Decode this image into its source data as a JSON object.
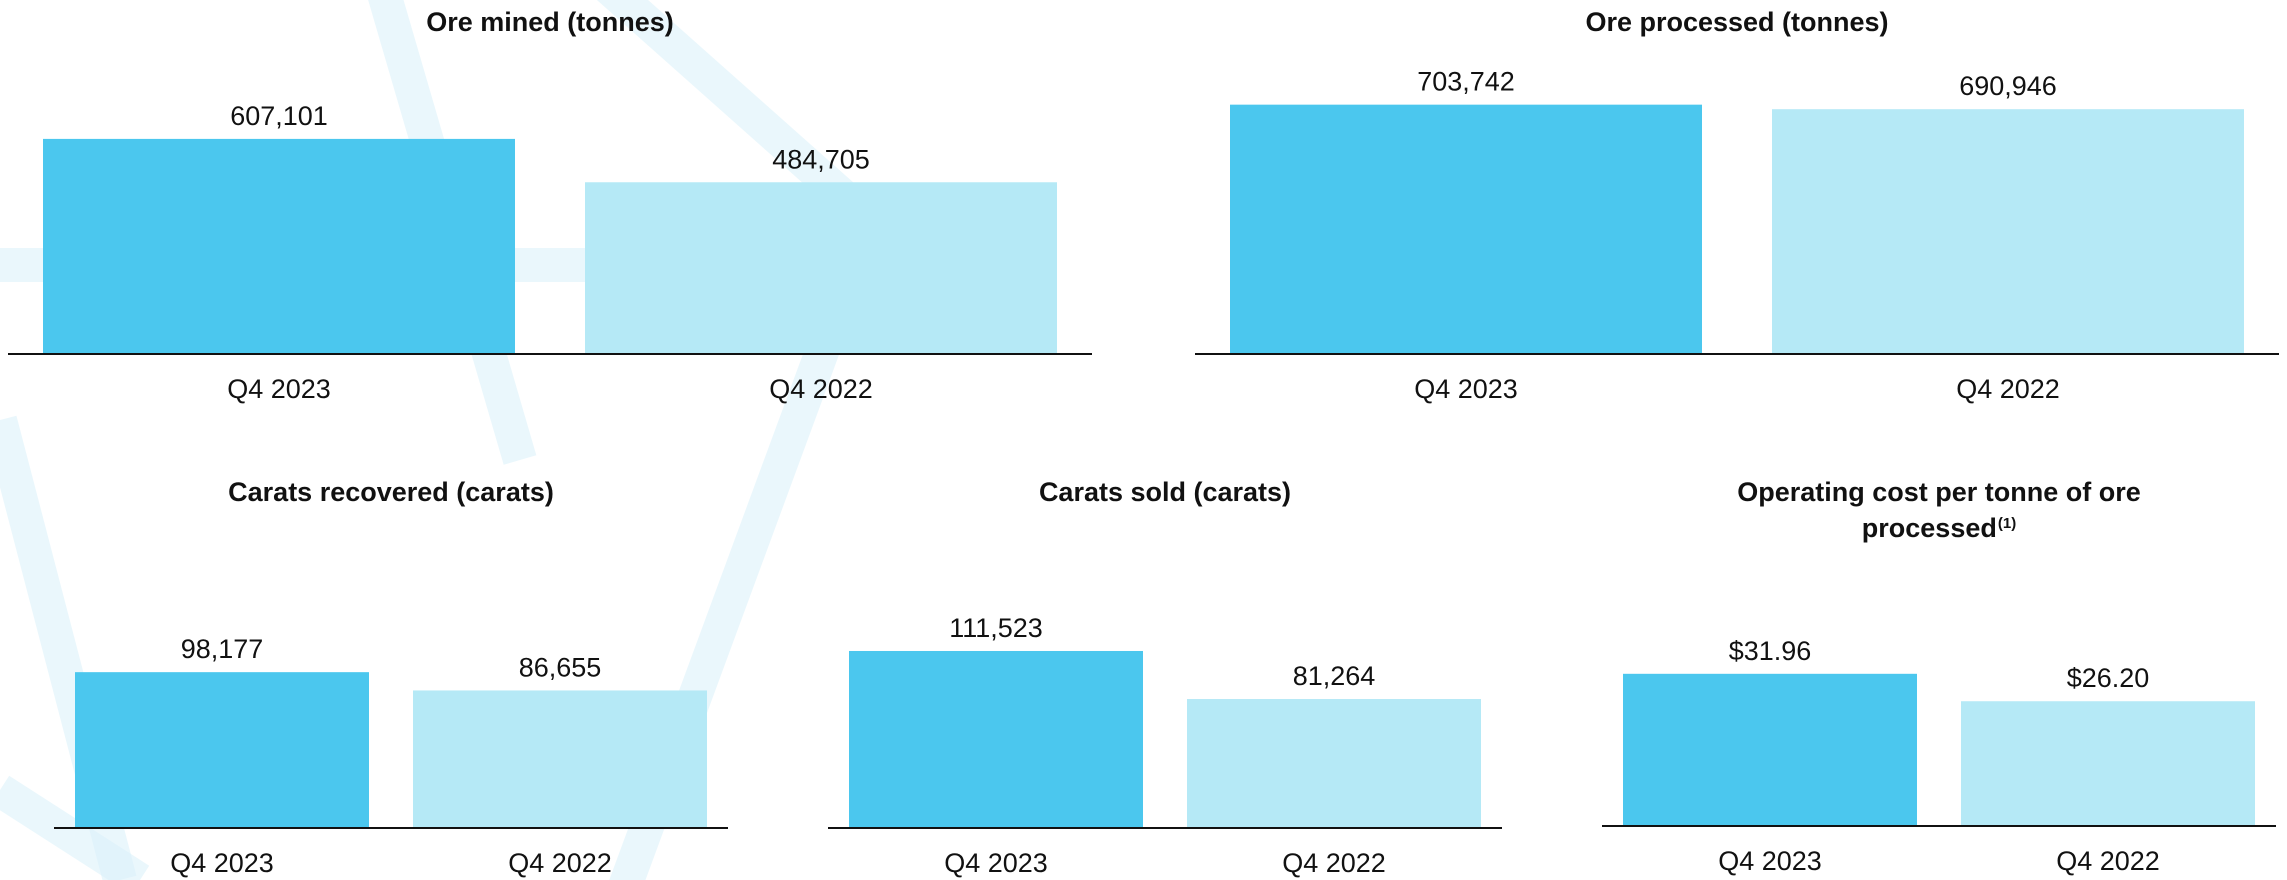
{
  "chart_data": [
    {
      "type": "bar",
      "title": "Ore mined (tonnes)",
      "categories": [
        "Q4 2023",
        "Q4 2022"
      ],
      "values": [
        607101,
        484705
      ],
      "value_labels": [
        "607,101",
        "484,705"
      ],
      "ylim": [
        0,
        720000
      ],
      "grid": false,
      "colors": [
        "#4bc7ee",
        "#b5e9f6"
      ]
    },
    {
      "type": "bar",
      "title": "Ore processed (tonnes)",
      "categories": [
        "Q4 2023",
        "Q4 2022"
      ],
      "values": [
        703742,
        690946
      ],
      "value_labels": [
        "703,742",
        "690,946"
      ],
      "ylim": [
        0,
        720000
      ],
      "grid": false,
      "colors": [
        "#4bc7ee",
        "#b5e9f6"
      ]
    },
    {
      "type": "bar",
      "title": "Carats recovered (carats)",
      "categories": [
        "Q4 2023",
        "Q4 2022"
      ],
      "values": [
        98177,
        86655
      ],
      "value_labels": [
        "98,177",
        "86,655"
      ],
      "ylim": [
        0,
        135000
      ],
      "grid": false,
      "colors": [
        "#4bc7ee",
        "#b5e9f6"
      ]
    },
    {
      "type": "bar",
      "title": "Carats sold (carats)",
      "categories": [
        "Q4 2023",
        "Q4 2022"
      ],
      "values": [
        111523,
        81264
      ],
      "value_labels": [
        "111,523",
        "81,264"
      ],
      "ylim": [
        0,
        135000
      ],
      "grid": false,
      "colors": [
        "#4bc7ee",
        "#b5e9f6"
      ]
    },
    {
      "type": "bar",
      "title": "Operating cost per tonne of ore processed",
      "title_superscript": "(1)",
      "categories": [
        "Q4 2023",
        "Q4 2022"
      ],
      "values": [
        31.96,
        26.2
      ],
      "value_labels": [
        "$31.96",
        "$26.20"
      ],
      "ylim": [
        0,
        45
      ],
      "grid": false,
      "colors": [
        "#4bc7ee",
        "#b5e9f6"
      ]
    }
  ]
}
